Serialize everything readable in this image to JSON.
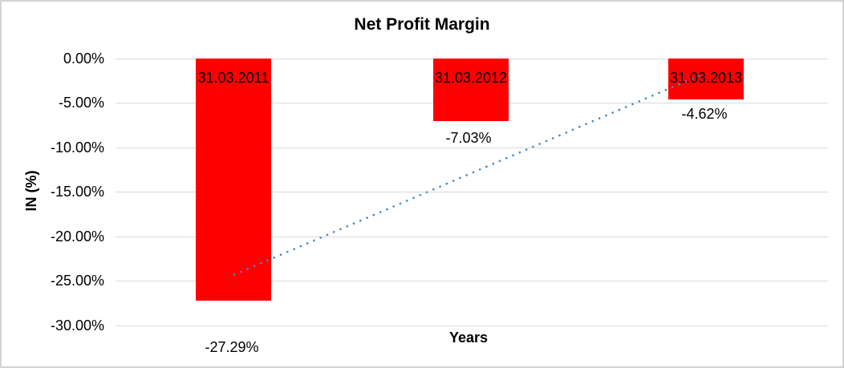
{
  "chart_data": {
    "type": "bar",
    "title": "Net Profit Margin",
    "xlabel": "Years",
    "ylabel": "IN (%)",
    "categories": [
      "31.03.2011",
      "31.03.2012",
      "31.03.2013"
    ],
    "values": [
      -27.29,
      -7.03,
      -4.62
    ],
    "value_labels": [
      "-27.29%",
      "-7.03%",
      "-4.62%"
    ],
    "ytick_labels": [
      "0.00%",
      "-5.00%",
      "-10.00%",
      "-15.00%",
      "-20.00%",
      "-25.00%",
      "-30.00%"
    ],
    "ytick_values": [
      0,
      -5,
      -10,
      -15,
      -20,
      -25,
      -30
    ],
    "ylim": [
      -30,
      0
    ],
    "grid": true,
    "legend": "none",
    "bar_color": "#FF0000",
    "text_color": "#000000",
    "gridline_color": "#D9D9D9",
    "border_color": "#D3D3D3",
    "trendline": {
      "type": "linear",
      "style": "dotted",
      "color": "#4A86C8",
      "start_value": -24.4,
      "end_value": -1.6
    }
  }
}
